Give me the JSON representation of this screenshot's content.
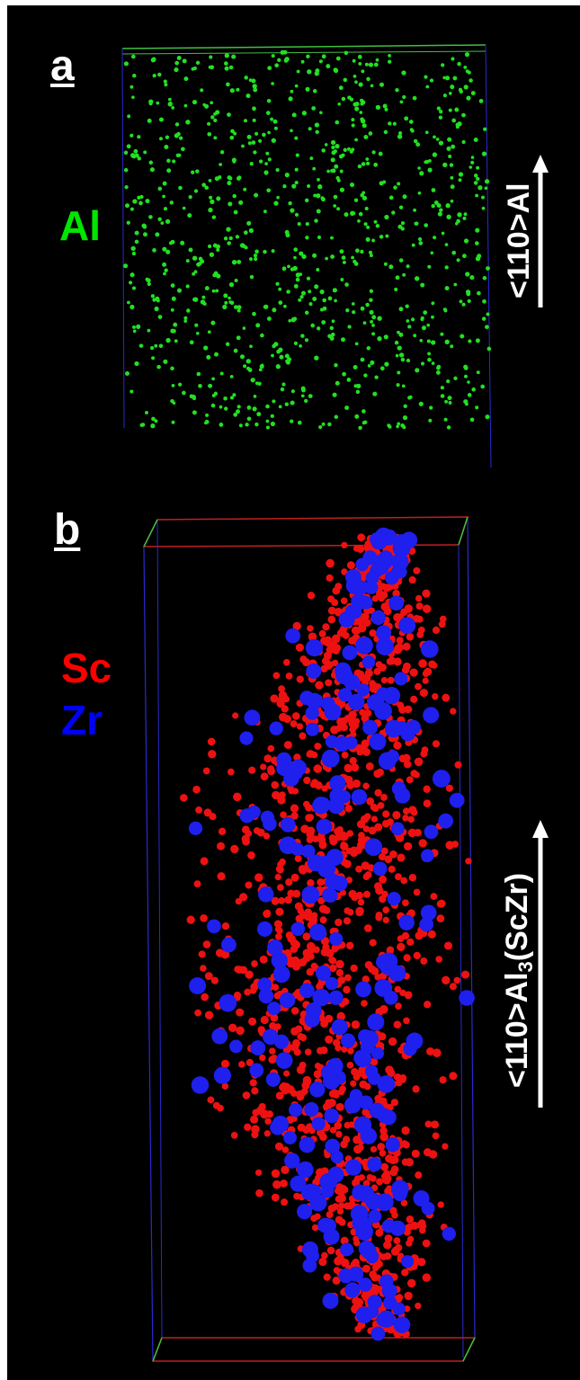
{
  "panels": [
    {
      "letter": "a",
      "legend": [
        {
          "text": "Al",
          "color": "#00e600"
        }
      ],
      "direction": {
        "prefix": "<110>",
        "main": "Al",
        "sub": "",
        "suffix": ""
      },
      "atom_color": "#22e022"
    },
    {
      "letter": "b",
      "legend": [
        {
          "text": "Sc",
          "color": "#ff0000"
        },
        {
          "text": "Zr",
          "color": "#0000ff"
        }
      ],
      "direction": {
        "prefix": "<110>",
        "main": "Al",
        "sub": "3",
        "suffix": "(ScZr)"
      },
      "atom_colors": {
        "Sc": "#ee1111",
        "Zr": "#1f1fee"
      }
    }
  ],
  "colors": {
    "background": "#000000",
    "box_edge_blue": "#2a2ad0",
    "box_edge_red": "#c02020",
    "box_edge_green": "#40c040",
    "arrow": "#ffffff"
  }
}
